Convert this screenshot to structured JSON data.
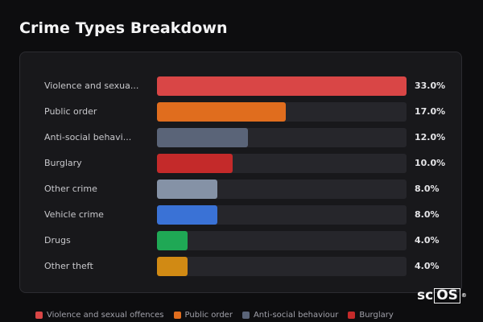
{
  "title": "Crime Types Breakdown",
  "chart_data": {
    "type": "bar",
    "orientation": "horizontal",
    "title": "Crime Types Breakdown",
    "max": 33.0,
    "categories": [
      {
        "full": "Violence and sexual offences",
        "label": "Violence and sexua...",
        "value": 33.0,
        "display": "33.0%",
        "color": "#d94646"
      },
      {
        "full": "Public order",
        "label": "Public order",
        "value": 17.0,
        "display": "17.0%",
        "color": "#e06d1e"
      },
      {
        "full": "Anti-social behaviour",
        "label": "Anti-social behavi...",
        "value": 12.0,
        "display": "12.0%",
        "color": "#5a6478"
      },
      {
        "full": "Burglary",
        "label": "Burglary",
        "value": 10.0,
        "display": "10.0%",
        "color": "#c42a2a"
      },
      {
        "full": "Other crime",
        "label": "Other crime",
        "value": 8.0,
        "display": "8.0%",
        "color": "#8592a6"
      },
      {
        "full": "Vehicle crime",
        "label": "Vehicle crime",
        "value": 8.0,
        "display": "8.0%",
        "color": "#3a72d6"
      },
      {
        "full": "Drugs",
        "label": "Drugs",
        "value": 4.0,
        "display": "4.0%",
        "color": "#1fa855"
      },
      {
        "full": "Other theft",
        "label": "Other theft",
        "value": 4.0,
        "display": "4.0%",
        "color": "#d18a14"
      }
    ],
    "legend": {
      "position": "bottom",
      "items": [
        {
          "label": "Violence and sexual offences",
          "color": "#d94646"
        },
        {
          "label": "Public order",
          "color": "#e06d1e"
        },
        {
          "label": "Anti-social behaviour",
          "color": "#5a6478"
        },
        {
          "label": "Burglary",
          "color": "#c42a2a"
        }
      ]
    }
  },
  "logo": {
    "text_a": "sc",
    "text_b": "OS",
    "mark": "®"
  }
}
